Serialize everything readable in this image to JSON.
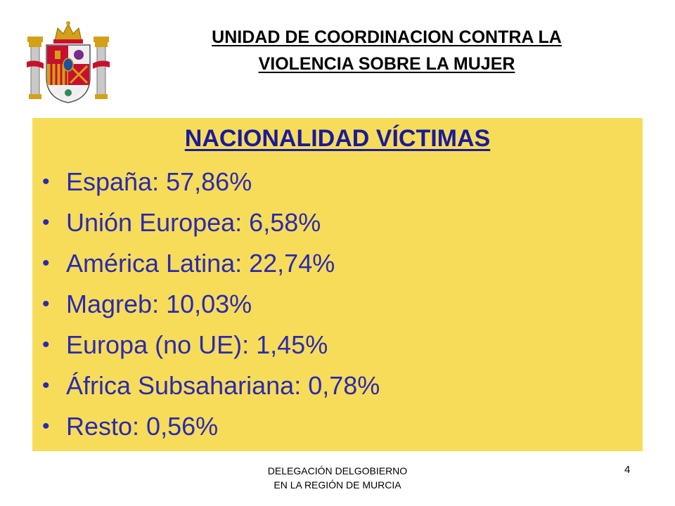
{
  "header": {
    "line1": "UNIDAD DE COORDINACION CONTRA LA",
    "line2": "VIOLENCIA SOBRE LA MUJER"
  },
  "emblem": {
    "icon": "spain-coat-of-arms-icon"
  },
  "panel": {
    "title": "NACIONALIDAD VÍCTIMAS",
    "items": [
      "España: 57,86%",
      "Unión Europea: 6,58%",
      "América Latina: 22,74%",
      "Magreb: 10,03%",
      "Europa (no UE): 1,45%",
      "África Subsahariana: 0,78%",
      "Resto: 0,56%"
    ],
    "colors": {
      "background": "#f7dc5a",
      "text": "#2a2ab0",
      "title": "#1a1a9c"
    }
  },
  "footer": {
    "line1": "DELEGACIÓN DELGOBIERNO",
    "line2": "EN LA REGIÓN DE MURCIA",
    "page_number": "4"
  }
}
